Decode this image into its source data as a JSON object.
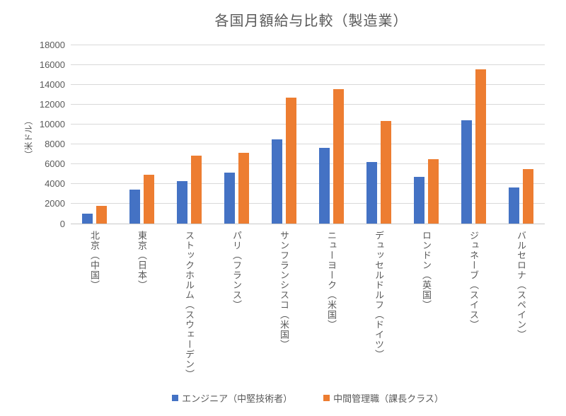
{
  "chart_data": {
    "type": "bar",
    "title": "各国月額給与比較（製造業）",
    "xlabel": "",
    "ylabel": "（米ドル）",
    "ylim": [
      0,
      18000
    ],
    "ytick_step": 2000,
    "grid": true,
    "legend_position": "bottom",
    "categories": [
      "北京（中国）",
      "東京（日本）",
      "ストックホルム（スウェーデン）",
      "パリ（フランス）",
      "サンフランシスコ（米国）",
      "ニューヨーク（米国）",
      "デュッセルドルフ（ドイツ）",
      "ロンドン（英国）",
      "ジュネーブ（スイス）",
      "バルセロナ（スペイン）"
    ],
    "series": [
      {
        "name": "エンジニア（中堅技術者）",
        "color": "#4472C4",
        "values": [
          1000,
          3400,
          4300,
          5100,
          8500,
          7600,
          6200,
          4700,
          10400,
          3600
        ]
      },
      {
        "name": "中間管理職（課長クラス）",
        "color": "#ED7D31",
        "values": [
          1800,
          4900,
          6800,
          7100,
          12700,
          13500,
          10300,
          6500,
          15500,
          5500
        ]
      }
    ]
  },
  "colors": {
    "text": "#595959",
    "gridline": "#d9d9d9",
    "background": "#ffffff"
  }
}
